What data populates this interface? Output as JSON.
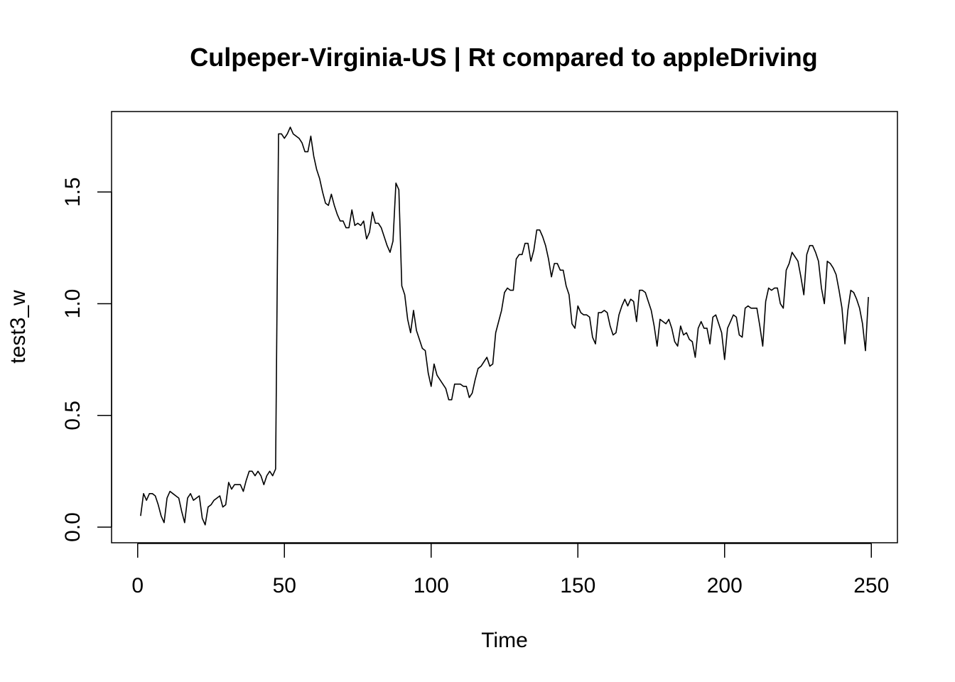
{
  "chart_data": {
    "type": "line",
    "title": "Culpeper-Virginia-US | Rt compared to appleDriving",
    "xlabel": "Time",
    "ylabel": "test3_w",
    "xlim": [
      -8.9,
      258.9
    ],
    "ylim": [
      -0.07,
      1.86
    ],
    "x_ticks": [
      0,
      50,
      100,
      150,
      200,
      250
    ],
    "y_ticks": [
      0.0,
      0.5,
      1.0,
      1.5
    ],
    "x_tick_labels": [
      "0",
      "50",
      "100",
      "150",
      "200",
      "250"
    ],
    "y_tick_labels": [
      "0.0",
      "0.5",
      "1.0",
      "1.5"
    ],
    "grid": false,
    "legend": "none",
    "series": [
      {
        "color": "#000000",
        "x_start": 1,
        "values": [
          0.05,
          0.15,
          0.12,
          0.15,
          0.15,
          0.14,
          0.1,
          0.05,
          0.02,
          0.13,
          0.16,
          0.15,
          0.14,
          0.13,
          0.07,
          0.02,
          0.13,
          0.15,
          0.12,
          0.13,
          0.14,
          0.04,
          0.01,
          0.09,
          0.1,
          0.12,
          0.13,
          0.14,
          0.09,
          0.1,
          0.2,
          0.17,
          0.19,
          0.19,
          0.19,
          0.16,
          0.21,
          0.25,
          0.25,
          0.23,
          0.25,
          0.23,
          0.19,
          0.23,
          0.25,
          0.23,
          0.26,
          1.76,
          1.76,
          1.74,
          1.76,
          1.79,
          1.76,
          1.75,
          1.74,
          1.72,
          1.68,
          1.68,
          1.75,
          1.66,
          1.6,
          1.56,
          1.5,
          1.45,
          1.44,
          1.49,
          1.44,
          1.4,
          1.37,
          1.37,
          1.34,
          1.34,
          1.42,
          1.35,
          1.36,
          1.35,
          1.37,
          1.29,
          1.32,
          1.41,
          1.36,
          1.36,
          1.34,
          1.3,
          1.26,
          1.23,
          1.28,
          1.54,
          1.51,
          1.08,
          1.04,
          0.93,
          0.87,
          0.97,
          0.88,
          0.84,
          0.8,
          0.79,
          0.69,
          0.63,
          0.73,
          0.68,
          0.66,
          0.64,
          0.62,
          0.57,
          0.57,
          0.64,
          0.64,
          0.64,
          0.63,
          0.63,
          0.58,
          0.6,
          0.66,
          0.71,
          0.72,
          0.74,
          0.76,
          0.72,
          0.73,
          0.87,
          0.92,
          0.97,
          1.05,
          1.07,
          1.06,
          1.06,
          1.2,
          1.22,
          1.22,
          1.27,
          1.27,
          1.19,
          1.24,
          1.33,
          1.33,
          1.3,
          1.26,
          1.2,
          1.12,
          1.18,
          1.18,
          1.15,
          1.15,
          1.08,
          1.04,
          0.91,
          0.89,
          0.99,
          0.96,
          0.95,
          0.95,
          0.94,
          0.85,
          0.82,
          0.96,
          0.96,
          0.97,
          0.96,
          0.9,
          0.86,
          0.87,
          0.95,
          0.99,
          1.02,
          0.99,
          1.02,
          1.01,
          0.92,
          1.06,
          1.06,
          1.05,
          1.01,
          0.97,
          0.9,
          0.81,
          0.93,
          0.92,
          0.91,
          0.93,
          0.89,
          0.83,
          0.81,
          0.9,
          0.86,
          0.87,
          0.84,
          0.83,
          0.76,
          0.89,
          0.92,
          0.89,
          0.89,
          0.82,
          0.94,
          0.95,
          0.91,
          0.87,
          0.75,
          0.89,
          0.92,
          0.95,
          0.94,
          0.86,
          0.85,
          0.98,
          0.99,
          0.98,
          0.98,
          0.98,
          0.9,
          0.81,
          1.01,
          1.07,
          1.06,
          1.07,
          1.07,
          1.0,
          0.98,
          1.15,
          1.18,
          1.23,
          1.21,
          1.19,
          1.12,
          1.04,
          1.22,
          1.26,
          1.26,
          1.23,
          1.19,
          1.07,
          1.0,
          1.19,
          1.18,
          1.16,
          1.13,
          1.06,
          0.98,
          0.82,
          0.97,
          1.06,
          1.05,
          1.02,
          0.98,
          0.91,
          0.79,
          1.03
        ]
      }
    ]
  }
}
